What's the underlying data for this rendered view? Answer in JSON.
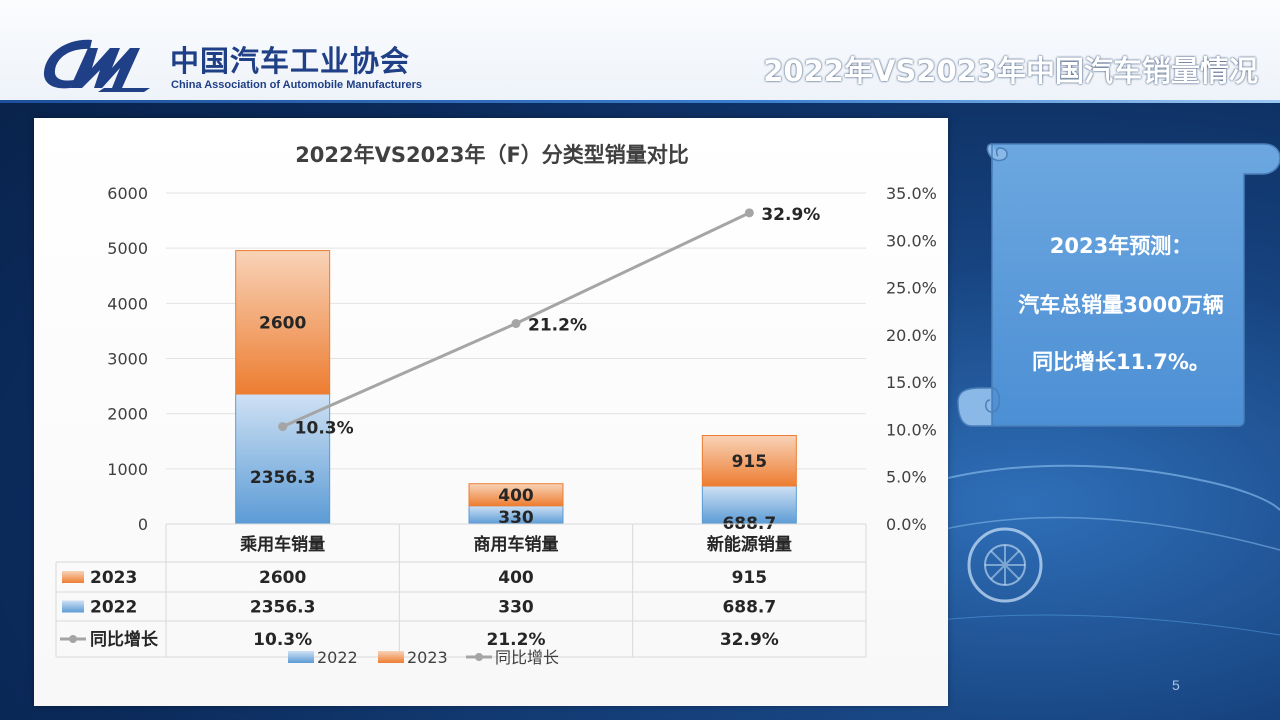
{
  "header": {
    "org_name_cn": "中国汽车工业协会",
    "org_name_en": "China Association of Automobile Manufacturers",
    "page_title": "2022年VS2023年中国汽车销量情况"
  },
  "forecast": {
    "line1": "2023年预测：",
    "line2": "汽车总销量3000万辆",
    "line3": "同比增长11.7%。"
  },
  "page_number": "5",
  "colors": {
    "series_2022": "#5b9bd5",
    "series_2023": "#ed7d31",
    "growth": "#a5a5a5"
  },
  "chart_data": {
    "type": "bar",
    "stacked": true,
    "title": "2022年VS2023年（F）分类型销量对比",
    "categories": [
      "乘用车销量",
      "商用车销量",
      "新能源销量"
    ],
    "series": [
      {
        "name": "2022",
        "values": [
          2356.3,
          330,
          688.7
        ],
        "labels": [
          "2356.3",
          "330",
          "688.7"
        ]
      },
      {
        "name": "2023",
        "values": [
          2600,
          400,
          915
        ],
        "labels": [
          "2600",
          "400",
          "915"
        ]
      }
    ],
    "line_series": {
      "name": "同比增长",
      "values": [
        10.3,
        21.2,
        32.9
      ],
      "labels": [
        "10.3%",
        "21.2%",
        "32.9%"
      ],
      "axis": "secondary"
    },
    "y_left": {
      "min": 0,
      "max": 6000,
      "ticks": [
        "0",
        "1000",
        "2000",
        "3000",
        "4000",
        "5000",
        "6000"
      ]
    },
    "y_right": {
      "min": 0,
      "max": 35,
      "ticks": [
        "0.0%",
        "5.0%",
        "10.0%",
        "15.0%",
        "20.0%",
        "25.0%",
        "30.0%",
        "35.0%"
      ]
    },
    "gridlines": true,
    "data_table": {
      "rows": [
        {
          "label": "2023",
          "values": [
            "2600",
            "400",
            "915"
          ]
        },
        {
          "label": "2022",
          "values": [
            "2356.3",
            "330",
            "688.7"
          ]
        },
        {
          "label": "同比增长",
          "values": [
            "10.3%",
            "21.2%",
            "32.9%"
          ]
        }
      ]
    },
    "legend": [
      "2022",
      "2023",
      "同比增长"
    ],
    "legend_position": "bottom"
  }
}
